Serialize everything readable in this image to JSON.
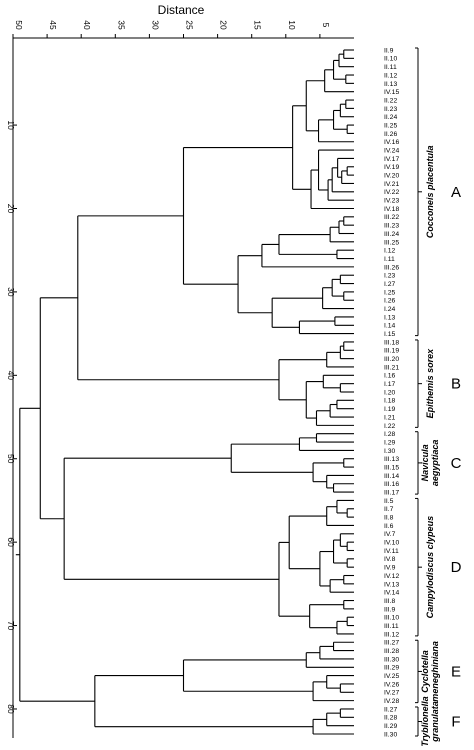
{
  "axis": {
    "title": "Distance",
    "top_ticks": [
      "50",
      "45",
      "40",
      "35",
      "30",
      "25",
      "20",
      "15",
      "10",
      "5"
    ],
    "left_ticks": [
      "10",
      "20",
      "30",
      "40",
      "50",
      "60",
      "70",
      "80"
    ]
  },
  "leaves": [
    "II.9",
    "II.10",
    "II.11",
    "II.12",
    "II.13",
    "IV.15",
    "II.22",
    "II.23",
    "II.24",
    "II.25",
    "II.26",
    "IV.16",
    "IV.24",
    "IV.17",
    "IV.19",
    "IV.20",
    "IV.21",
    "IV.22",
    "IV.23",
    "IV.18",
    "III.22",
    "III.23",
    "III.24",
    "III.25",
    "I.12",
    "I.11",
    "III.26",
    "I.23",
    "I.27",
    "I.25",
    "I.26",
    "I.24",
    "I.13",
    "I.14",
    "I.15",
    "III.18",
    "III.19",
    "III.20",
    "III.21",
    "I.16",
    "I.17",
    "I.20",
    "I.18",
    "I.19",
    "I.21",
    "I.22",
    "I.28",
    "I.29",
    "I.30",
    "III.13",
    "III.15",
    "III.14",
    "III.16",
    "III.17",
    "II.5",
    "II.7",
    "II.8",
    "II.6",
    "IV.7",
    "IV.10",
    "IV.11",
    "IV.8",
    "IV.9",
    "IV.12",
    "IV.13",
    "IV.14",
    "III.8",
    "III.9",
    "III.10",
    "III.11",
    "III.12",
    "III.27",
    "III.28",
    "III.30",
    "III.29",
    "IV.25",
    "IV.26",
    "IV.27",
    "IV.28",
    "II.27",
    "II.28",
    "II.29",
    "II.30"
  ],
  "groups": [
    {
      "letter": "A",
      "species": "Cocconeis placentula",
      "first": 0,
      "last": 34
    },
    {
      "letter": "B",
      "species": "Epithemis sorex",
      "first": 35,
      "last": 45
    },
    {
      "letter": "C",
      "species": "Navicula aegyptiaca",
      "first": 46,
      "last": 53
    },
    {
      "letter": "D",
      "species": "Campylodiscus clypeus",
      "first": 54,
      "last": 70
    },
    {
      "letter": "E",
      "species": "Cyclotella meneghiniana",
      "first": 71,
      "last": 78
    },
    {
      "letter": "F",
      "species": "Tryblionella granulata",
      "first": 79,
      "last": 82
    }
  ],
  "clusters": [
    {
      "id": "c_a1",
      "height": 1.5,
      "children": [
        0,
        1
      ]
    },
    {
      "id": "c_a2",
      "height": 2.2,
      "children": [
        "c_a1",
        2
      ]
    },
    {
      "id": "c_a3",
      "height": 1.2,
      "children": [
        3,
        4
      ]
    },
    {
      "id": "c_a4",
      "height": 3.0,
      "children": [
        "c_a2",
        "c_a3"
      ]
    },
    {
      "id": "c_a5",
      "height": 4.3,
      "children": [
        "c_a4",
        5
      ]
    },
    {
      "id": "c_a6",
      "height": 1.2,
      "children": [
        6,
        7
      ]
    },
    {
      "id": "c_a7",
      "height": 2.0,
      "children": [
        "c_a6",
        8
      ]
    },
    {
      "id": "c_a8",
      "height": 1.0,
      "children": [
        9,
        10
      ]
    },
    {
      "id": "c_a9",
      "height": 3.0,
      "children": [
        "c_a7",
        "c_a8"
      ]
    },
    {
      "id": "c_a10",
      "height": 5.2,
      "children": [
        "c_a9",
        11
      ]
    },
    {
      "id": "c_a11",
      "height": 7.0,
      "children": [
        "c_a5",
        "c_a10"
      ]
    },
    {
      "id": "c_a12",
      "height": 1.0,
      "children": [
        14,
        15
      ]
    },
    {
      "id": "c_a13",
      "height": 1.8,
      "children": [
        "c_a12",
        16
      ]
    },
    {
      "id": "c_a14",
      "height": 2.4,
      "children": [
        13,
        "c_a13"
      ]
    },
    {
      "id": "c_a15",
      "height": 3.2,
      "children": [
        "c_a14",
        17
      ]
    },
    {
      "id": "c_a16",
      "height": 3.8,
      "children": [
        "c_a15",
        18
      ]
    },
    {
      "id": "c_a17",
      "height": 5.2,
      "children": [
        12,
        "c_a16"
      ]
    },
    {
      "id": "c_a18",
      "height": 6.3,
      "children": [
        "c_a17",
        19
      ]
    },
    {
      "id": "c_a19",
      "height": 9.0,
      "children": [
        "c_a11",
        "c_a18"
      ]
    },
    {
      "id": "c_a20",
      "height": 1.5,
      "children": [
        20,
        21
      ]
    },
    {
      "id": "c_a21",
      "height": 2.2,
      "children": [
        "c_a20",
        22
      ]
    },
    {
      "id": "c_a22",
      "height": 3.5,
      "children": [
        "c_a21",
        23
      ]
    },
    {
      "id": "c_a23",
      "height": 2.5,
      "children": [
        24,
        25
      ]
    },
    {
      "id": "c_a24",
      "height": 11.0,
      "children": [
        "c_a22",
        "c_a23"
      ]
    },
    {
      "id": "c_a25",
      "height": 13.5,
      "children": [
        "c_a24",
        26
      ]
    },
    {
      "id": "c_a26",
      "height": 2.0,
      "children": [
        27,
        28
      ]
    },
    {
      "id": "c_a27",
      "height": 1.5,
      "children": [
        29,
        30
      ]
    },
    {
      "id": "c_a28",
      "height": 3.2,
      "children": [
        "c_a26",
        "c_a27"
      ]
    },
    {
      "id": "c_a29",
      "height": 4.6,
      "children": [
        "c_a28",
        31
      ]
    },
    {
      "id": "c_a30",
      "height": 2.8,
      "children": [
        32,
        33
      ]
    },
    {
      "id": "c_a31",
      "height": 8.0,
      "children": [
        "c_a30",
        34
      ]
    },
    {
      "id": "c_a32",
      "height": 12.0,
      "children": [
        "c_a29",
        "c_a31"
      ]
    },
    {
      "id": "c_a33",
      "height": 17.0,
      "children": [
        "c_a25",
        "c_a32"
      ]
    },
    {
      "id": "c_a34",
      "height": 25.0,
      "children": [
        "c_a19",
        "c_a33"
      ]
    },
    {
      "id": "c_b1",
      "height": 1.5,
      "children": [
        35,
        36
      ]
    },
    {
      "id": "c_b2",
      "height": 2.0,
      "children": [
        "c_b1",
        37
      ]
    },
    {
      "id": "c_b3",
      "height": 4.0,
      "children": [
        "c_b2",
        38
      ]
    },
    {
      "id": "c_b4",
      "height": 2.0,
      "children": [
        40,
        41
      ]
    },
    {
      "id": "c_b5",
      "height": 4.5,
      "children": [
        39,
        "c_b4"
      ]
    },
    {
      "id": "c_b6",
      "height": 2.5,
      "children": [
        42,
        43
      ]
    },
    {
      "id": "c_b7",
      "height": 3.5,
      "children": [
        "c_b6",
        44
      ]
    },
    {
      "id": "c_b8",
      "height": 5.5,
      "children": [
        "c_b7",
        45
      ]
    },
    {
      "id": "c_b9",
      "height": 7.0,
      "children": [
        "c_b5",
        "c_b8"
      ]
    },
    {
      "id": "c_b10",
      "height": 11.0,
      "children": [
        "c_b3",
        "c_b9"
      ]
    },
    {
      "id": "c_ab",
      "height": 40.5,
      "children": [
        "c_a34",
        "c_b10"
      ]
    },
    {
      "id": "c_c1",
      "height": 5.5,
      "children": [
        46,
        47
      ]
    },
    {
      "id": "c_c2",
      "height": 8.0,
      "children": [
        "c_c1",
        48
      ]
    },
    {
      "id": "c_c3",
      "height": 1.5,
      "children": [
        49,
        50
      ]
    },
    {
      "id": "c_c4",
      "height": 3.0,
      "children": [
        52,
        53
      ]
    },
    {
      "id": "c_c5",
      "height": 4.0,
      "children": [
        51,
        "c_c4"
      ]
    },
    {
      "id": "c_c6",
      "height": 6.0,
      "children": [
        "c_c3",
        "c_c5"
      ]
    },
    {
      "id": "c_c7",
      "height": 18.0,
      "children": [
        "c_c2",
        "c_c6"
      ]
    },
    {
      "id": "c_d1",
      "height": 1.0,
      "children": [
        55,
        56
      ]
    },
    {
      "id": "c_d2",
      "height": 2.5,
      "children": [
        54,
        "c_d1"
      ]
    },
    {
      "id": "c_d3",
      "height": 4.0,
      "children": [
        "c_d2",
        57
      ]
    },
    {
      "id": "c_d4",
      "height": 1.0,
      "children": [
        59,
        60
      ]
    },
    {
      "id": "c_d5",
      "height": 2.0,
      "children": [
        58,
        "c_d4"
      ]
    },
    {
      "id": "c_d6",
      "height": 1.0,
      "children": [
        61,
        62
      ]
    },
    {
      "id": "c_d7",
      "height": 3.0,
      "children": [
        "c_d5",
        "c_d6"
      ]
    },
    {
      "id": "c_d8",
      "height": 1.5,
      "children": [
        63,
        64
      ]
    },
    {
      "id": "c_d9",
      "height": 3.5,
      "children": [
        "c_d8",
        65
      ]
    },
    {
      "id": "c_d10",
      "height": 5.0,
      "children": [
        "c_d7",
        "c_d9"
      ]
    },
    {
      "id": "c_d11",
      "height": 9.5,
      "children": [
        "c_d3",
        "c_d10"
      ]
    },
    {
      "id": "c_d12",
      "height": 1.5,
      "children": [
        66,
        67
      ]
    },
    {
      "id": "c_d13",
      "height": 1.0,
      "children": [
        68,
        69
      ]
    },
    {
      "id": "c_d14",
      "height": 2.5,
      "children": [
        "c_d13",
        70
      ]
    },
    {
      "id": "c_d15",
      "height": 6.5,
      "children": [
        "c_d12",
        "c_d14"
      ]
    },
    {
      "id": "c_d16",
      "height": 11.0,
      "children": [
        "c_d11",
        "c_d15"
      ]
    },
    {
      "id": "c_d17",
      "height": 42.5,
      "children": [
        "c_c7",
        "c_d16"
      ]
    },
    {
      "id": "c_abcd",
      "height": 46.0,
      "children": [
        "c_ab",
        "c_d17"
      ]
    },
    {
      "id": "c_e1",
      "height": 3.0,
      "children": [
        71,
        72
      ]
    },
    {
      "id": "c_e2",
      "height": 5.0,
      "children": [
        "c_e1",
        73
      ]
    },
    {
      "id": "c_e3",
      "height": 7.0,
      "children": [
        "c_e2",
        74
      ]
    },
    {
      "id": "c_e4",
      "height": 2.0,
      "children": [
        76,
        77
      ]
    },
    {
      "id": "c_e5",
      "height": 4.0,
      "children": [
        75,
        "c_e4"
      ]
    },
    {
      "id": "c_e6",
      "height": 6.0,
      "children": [
        "c_e5",
        78
      ]
    },
    {
      "id": "c_e7",
      "height": 25.0,
      "children": [
        "c_e3",
        "c_e6"
      ]
    },
    {
      "id": "c_f1",
      "height": 2.0,
      "children": [
        79,
        80
      ]
    },
    {
      "id": "c_f2",
      "height": 4.0,
      "children": [
        "c_f1",
        81
      ]
    },
    {
      "id": "c_f3",
      "height": 6.0,
      "children": [
        "c_f2",
        82
      ]
    },
    {
      "id": "c_ef",
      "height": 38.0,
      "children": [
        "c_e7",
        "c_f3"
      ]
    },
    {
      "id": "c_root",
      "height": 49.0,
      "children": [
        "c_abcd",
        "c_ef"
      ]
    }
  ]
}
